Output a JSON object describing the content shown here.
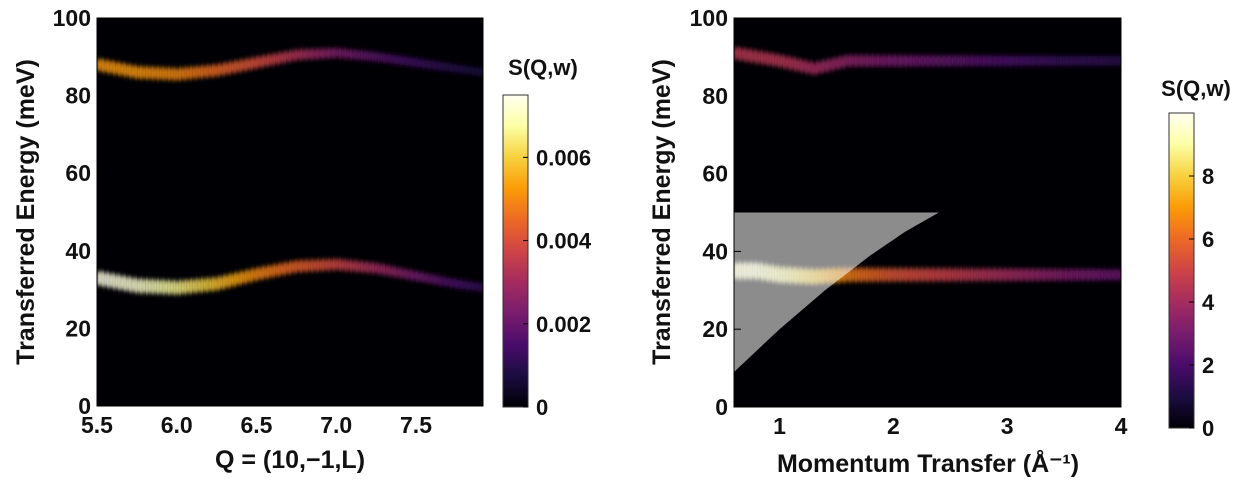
{
  "colorscale": [
    "#000004",
    "#1b0c41",
    "#4a0c6b",
    "#781c6d",
    "#a52c60",
    "#cf4446",
    "#ed6925",
    "#fb9b06",
    "#f7d13d",
    "#fcffa4",
    "#fffff0"
  ],
  "chart_data": [
    {
      "type": "heatmap",
      "title": "",
      "xlabel": "Q = (10,−1,L)",
      "ylabel": "Transferred Energy (meV)",
      "xlim": [
        5.5,
        7.92
      ],
      "ylim": [
        0,
        100
      ],
      "xticks": [
        "5.5",
        "6.0",
        "6.5",
        "7.0",
        "7.5"
      ],
      "xtick_values": [
        5.5,
        6.0,
        6.5,
        7.0,
        7.5
      ],
      "yticks": [
        "0",
        "20",
        "40",
        "60",
        "80",
        "100"
      ],
      "ytick_values": [
        0,
        20,
        40,
        60,
        80,
        100
      ],
      "colorbar": {
        "label": "S(Q,w)",
        "range": [
          0,
          0.0075
        ],
        "ticks": [
          "0",
          "0.002",
          "0.004",
          "0.006"
        ],
        "tick_values": [
          0,
          0.002,
          0.004,
          0.006
        ]
      },
      "bands": [
        {
          "name": "upper",
          "x": [
            5.5,
            5.75,
            6.0,
            6.25,
            6.5,
            6.75,
            7.0,
            7.25,
            7.5,
            7.75,
            7.92
          ],
          "center": [
            88,
            86,
            85.5,
            86.5,
            88.5,
            90.5,
            91,
            90,
            88.5,
            87,
            86
          ],
          "intensity": [
            0.0052,
            0.0052,
            0.005,
            0.0045,
            0.004,
            0.0032,
            0.0024,
            0.0018,
            0.0013,
            0.0009,
            0.0007
          ]
        },
        {
          "name": "lower",
          "x": [
            5.5,
            5.75,
            6.0,
            6.25,
            6.5,
            6.75,
            7.0,
            7.25,
            7.5,
            7.75,
            7.92
          ],
          "center": [
            33,
            31,
            30.5,
            31.5,
            34,
            36,
            36.5,
            35.5,
            33.5,
            31.5,
            30.5
          ],
          "intensity": [
            0.0074,
            0.0072,
            0.0066,
            0.0058,
            0.005,
            0.0044,
            0.0038,
            0.003,
            0.0022,
            0.0015,
            0.0011
          ]
        }
      ]
    },
    {
      "type": "heatmap",
      "title": "",
      "xlabel": "Momentum Transfer (Å⁻¹)",
      "ylabel": "Transferred Energy (meV)",
      "xlim": [
        0.6,
        4.0
      ],
      "ylim": [
        0,
        100
      ],
      "xticks": [
        "1",
        "2",
        "3",
        "4"
      ],
      "xtick_values": [
        1,
        2,
        3,
        4
      ],
      "yticks": [
        "0",
        "20",
        "40",
        "60",
        "80",
        "100"
      ],
      "ytick_values": [
        0,
        20,
        40,
        60,
        80,
        100
      ],
      "colorbar": {
        "label": "S(Q,w)",
        "range": [
          0,
          10
        ],
        "ticks": [
          "0",
          "2",
          "4",
          "6",
          "8"
        ],
        "tick_values": [
          0,
          2,
          4,
          6,
          8
        ]
      },
      "bands": [
        {
          "name": "upper",
          "x": [
            0.6,
            1.0,
            1.3,
            1.6,
            2.0,
            2.5,
            3.0,
            3.5,
            4.0
          ],
          "center": [
            91,
            89,
            87,
            89,
            89,
            89,
            89,
            89,
            89
          ],
          "intensity": [
            4.5,
            4.5,
            4.0,
            3.5,
            3.0,
            2.5,
            2.0,
            1.6,
            1.3
          ]
        },
        {
          "name": "lower",
          "x": [
            0.6,
            0.8,
            1.0,
            1.3,
            1.6,
            2.0,
            2.5,
            3.0,
            3.5,
            4.0
          ],
          "center": [
            35,
            35,
            34,
            33.5,
            34,
            34,
            34,
            34,
            34,
            34
          ],
          "intensity": [
            9.5,
            9.5,
            9.0,
            8.0,
            6.5,
            5.5,
            4.8,
            4.0,
            3.2,
            2.6
          ]
        }
      ],
      "shaded_region": {
        "x": [
          0.6,
          0.6,
          2.4
        ],
        "y": [
          9,
          50,
          50
        ],
        "curve_x": [
          0.6,
          1.0,
          1.4,
          1.8,
          2.1,
          2.4
        ],
        "curve_y": [
          9,
          20,
          30,
          39,
          45,
          50
        ]
      }
    }
  ]
}
